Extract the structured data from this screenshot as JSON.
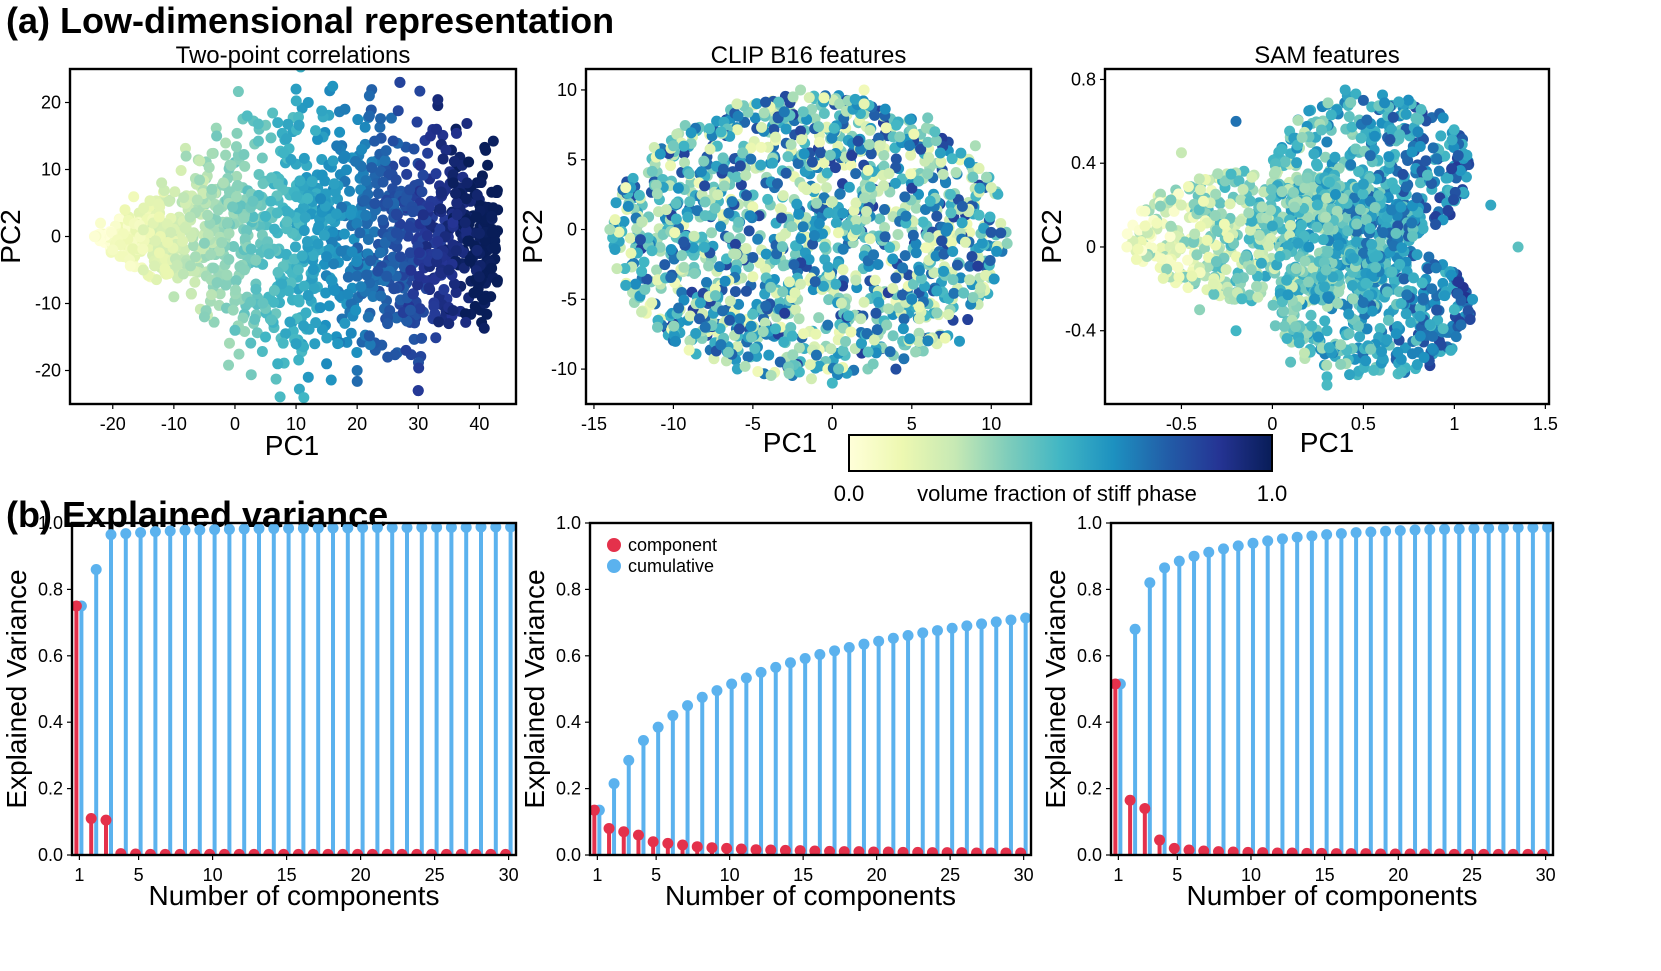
{
  "panel_a_label": "(a) Low-dimensional representation",
  "panel_b_label": "(b) Explained variance",
  "colorbar": {
    "label": "volume fraction of stiff phase",
    "min_label": "0.0",
    "max_label": "1.0",
    "colors": [
      "#ffffd9",
      "#edf8b1",
      "#c7e9b4",
      "#7fcdbb",
      "#41b6c4",
      "#1d91c0",
      "#225ea8",
      "#253494",
      "#081d58"
    ]
  },
  "colors": {
    "component": "#e4314b",
    "cumulative": "#5bb2ee"
  },
  "chart_data": [
    {
      "type": "scatter",
      "title": "Two-point correlations",
      "xlabel": "PC1",
      "ylabel": "PC2",
      "xlim": [
        -27,
        46
      ],
      "ylim": [
        -25,
        25
      ],
      "xticks": [
        -20,
        -10,
        0,
        10,
        20,
        30,
        40
      ],
      "yticks": [
        -20,
        -10,
        0,
        10,
        20
      ],
      "xtick_labels": [
        "-20",
        "-10",
        "0",
        "10",
        "20",
        "30",
        "40"
      ],
      "ytick_labels": [
        "-20",
        "-10",
        "0",
        "10",
        "20"
      ],
      "color_by": "volume fraction of stiff phase",
      "cloud": {
        "shape": "diamond",
        "x_range": [
          -23,
          43
        ],
        "y_range": [
          -23,
          23
        ],
        "color_trend": "increases with PC1"
      },
      "x": [
        -23,
        -22,
        -20,
        -18,
        -15,
        -12,
        -10,
        -8,
        -5,
        -3,
        0,
        2,
        5,
        7,
        10,
        12,
        15,
        18,
        20,
        22,
        25,
        27,
        30,
        32,
        35,
        38,
        40,
        42,
        -15,
        -5,
        5,
        15,
        25,
        35,
        7,
        10,
        27,
        30,
        33,
        28,
        22,
        12,
        18
      ],
      "y": [
        0,
        2,
        -2,
        4,
        -5,
        8,
        -9,
        12,
        -12,
        15,
        -14,
        18,
        -15,
        17,
        -16,
        20,
        -19,
        19,
        -20,
        18,
        -18,
        23,
        -23,
        15,
        -13,
        8,
        -6,
        3,
        1,
        -1,
        3,
        -3,
        5,
        -5,
        -19,
        22,
        23,
        -23,
        16,
        -17,
        21,
        -21,
        12
      ],
      "v": [
        0.02,
        0.04,
        0.07,
        0.12,
        0.18,
        0.24,
        0.27,
        0.32,
        0.36,
        0.4,
        0.44,
        0.47,
        0.5,
        0.53,
        0.57,
        0.6,
        0.64,
        0.68,
        0.7,
        0.73,
        0.78,
        0.82,
        0.86,
        0.89,
        0.93,
        0.96,
        0.98,
        0.99,
        0.18,
        0.36,
        0.5,
        0.64,
        0.78,
        0.93,
        0.52,
        0.58,
        0.83,
        0.86,
        0.9,
        0.84,
        0.72,
        0.6,
        0.66
      ]
    },
    {
      "type": "scatter",
      "title": "CLIP B16 features",
      "xlabel": "PC1",
      "ylabel": "PC2",
      "xlim": [
        -15.5,
        12.5
      ],
      "ylim": [
        -12.5,
        11.5
      ],
      "xticks": [
        -15,
        -10,
        -5,
        0,
        5,
        10
      ],
      "yticks": [
        -10,
        -5,
        0,
        5,
        10
      ],
      "xtick_labels": [
        "-15",
        "-10",
        "-5",
        "0",
        "5",
        "10"
      ],
      "ytick_labels": [
        "-10",
        "-5",
        "0",
        "5",
        "10"
      ],
      "color_by": "volume fraction of stiff phase",
      "cloud": {
        "shape": "ellipse",
        "x_range": [
          -14,
          11
        ],
        "y_range": [
          -11.5,
          10.5
        ],
        "color_trend": "mixed"
      },
      "x": [
        -14,
        -13,
        -12,
        -10,
        -8,
        -6,
        -4,
        -2,
        0,
        2,
        4,
        6,
        8,
        10,
        11,
        -13,
        -9,
        -5,
        0,
        5,
        9,
        -11,
        -7,
        -3,
        3,
        7,
        -8,
        -1,
        6,
        2
      ],
      "y": [
        0,
        3,
        -3,
        6,
        -7,
        9,
        -9,
        10,
        -11,
        9,
        -10,
        8,
        -8,
        3,
        -1,
        -4,
        4,
        -2,
        2,
        -5,
        6,
        -7,
        7,
        -6,
        6,
        -3,
        1,
        -9,
        4,
        10
      ],
      "v": [
        0.3,
        0.1,
        0.5,
        0.4,
        0.7,
        0.2,
        0.6,
        0.3,
        0.5,
        0.15,
        0.8,
        0.4,
        0.6,
        0.2,
        0.35,
        0.55,
        0.45,
        0.75,
        0.25,
        0.65,
        0.3,
        0.4,
        0.5,
        0.85,
        0.2,
        0.6,
        0.45,
        0.7,
        0.35,
        0.1
      ]
    },
    {
      "type": "scatter",
      "title": "SAM features",
      "xlabel": "PC1",
      "ylabel": "PC2",
      "xlim": [
        -0.92,
        1.52
      ],
      "ylim": [
        -0.75,
        0.85
      ],
      "xticks": [
        -0.5,
        0,
        0.5,
        1,
        1.5
      ],
      "yticks": [
        -0.4,
        0,
        0.4,
        0.8
      ],
      "xtick_labels": [
        "-0.5",
        "0",
        "0.5",
        "1",
        "1.5"
      ],
      "ytick_labels": [
        "-0.4",
        "0",
        "0.4",
        "0.8"
      ],
      "color_by": "volume fraction of stiff phase",
      "cloud": {
        "shape": "lobed",
        "x_range": [
          -0.8,
          1.4
        ],
        "y_range": [
          -0.68,
          0.78
        ],
        "color_trend": "lighter at low PC1"
      },
      "x": [
        -0.8,
        -0.7,
        -0.6,
        -0.5,
        -0.4,
        -0.3,
        -0.2,
        0.0,
        0.1,
        0.2,
        0.3,
        0.4,
        0.6,
        0.8,
        1.0,
        1.2,
        1.35,
        -0.5,
        -0.2,
        0.2,
        0.5,
        0.9,
        0.3,
        0.5,
        0.3,
        1.1
      ],
      "y": [
        0.0,
        0.1,
        -0.15,
        0.2,
        -0.3,
        0.35,
        -0.4,
        0.1,
        -0.55,
        0.65,
        -0.62,
        0.75,
        -0.5,
        0.55,
        -0.3,
        0.2,
        0.0,
        0.45,
        0.6,
        0.0,
        0.3,
        -0.1,
        -0.4,
        0.7,
        -0.66,
        -0.25
      ],
      "v": [
        0.05,
        0.1,
        0.15,
        0.2,
        0.35,
        0.3,
        0.5,
        0.55,
        0.45,
        0.6,
        0.5,
        0.55,
        0.6,
        0.65,
        0.5,
        0.55,
        0.45,
        0.25,
        0.7,
        0.62,
        0.58,
        0.68,
        0.52,
        0.74,
        0.48,
        0.6
      ]
    },
    {
      "type": "stem",
      "title": "",
      "xlabel": "Number of components",
      "ylabel": "Explained Variance",
      "xlim": [
        0.5,
        30.5
      ],
      "ylim": [
        0,
        1.0
      ],
      "xticks": [
        1,
        5,
        10,
        15,
        20,
        25,
        30
      ],
      "yticks": [
        0,
        0.2,
        0.4,
        0.6,
        0.8,
        1.0
      ],
      "xtick_labels": [
        "1",
        "5",
        "10",
        "15",
        "20",
        "25",
        "30"
      ],
      "ytick_labels": [
        "0.0",
        "0.2",
        "0.4",
        "0.6",
        "0.8",
        "1.0"
      ],
      "legend": "none",
      "x": [
        1,
        2,
        3,
        4,
        5,
        6,
        7,
        8,
        9,
        10,
        11,
        12,
        13,
        14,
        15,
        16,
        17,
        18,
        19,
        20,
        21,
        22,
        23,
        24,
        25,
        26,
        27,
        28,
        29,
        30
      ],
      "series": [
        {
          "name": "component",
          "values": [
            0.75,
            0.11,
            0.105,
            0.004,
            0.003,
            0.002,
            0.002,
            0.002,
            0.002,
            0.002,
            0.002,
            0.002,
            0.002,
            0.002,
            0.002,
            0.002,
            0.002,
            0.002,
            0.002,
            0.002,
            0.002,
            0.002,
            0.002,
            0.002,
            0.002,
            0.002,
            0.002,
            0.002,
            0.002,
            0.002
          ]
        },
        {
          "name": "cumulative",
          "values": [
            0.75,
            0.86,
            0.965,
            0.968,
            0.971,
            0.974,
            0.976,
            0.978,
            0.979,
            0.98,
            0.981,
            0.982,
            0.983,
            0.983,
            0.984,
            0.984,
            0.985,
            0.985,
            0.985,
            0.986,
            0.986,
            0.986,
            0.986,
            0.987,
            0.987,
            0.987,
            0.987,
            0.988,
            0.988,
            0.988
          ]
        }
      ]
    },
    {
      "type": "stem",
      "title": "",
      "xlabel": "Number of components",
      "ylabel": "Explained Variance",
      "xlim": [
        0.5,
        30.5
      ],
      "ylim": [
        0,
        1.0
      ],
      "xticks": [
        1,
        5,
        10,
        15,
        20,
        25,
        30
      ],
      "yticks": [
        0,
        0.2,
        0.4,
        0.6,
        0.8,
        1.0
      ],
      "xtick_labels": [
        "1",
        "5",
        "10",
        "15",
        "20",
        "25",
        "30"
      ],
      "ytick_labels": [
        "0.0",
        "0.2",
        "0.4",
        "0.6",
        "0.8",
        "1.0"
      ],
      "legend": "top-left",
      "x": [
        1,
        2,
        3,
        4,
        5,
        6,
        7,
        8,
        9,
        10,
        11,
        12,
        13,
        14,
        15,
        16,
        17,
        18,
        19,
        20,
        21,
        22,
        23,
        24,
        25,
        26,
        27,
        28,
        29,
        30
      ],
      "series": [
        {
          "name": "component",
          "values": [
            0.135,
            0.08,
            0.07,
            0.06,
            0.04,
            0.035,
            0.03,
            0.025,
            0.022,
            0.02,
            0.018,
            0.016,
            0.015,
            0.014,
            0.013,
            0.012,
            0.011,
            0.01,
            0.01,
            0.009,
            0.009,
            0.008,
            0.008,
            0.007,
            0.007,
            0.007,
            0.006,
            0.006,
            0.006,
            0.006
          ]
        },
        {
          "name": "cumulative",
          "values": [
            0.135,
            0.215,
            0.285,
            0.345,
            0.385,
            0.42,
            0.45,
            0.475,
            0.495,
            0.515,
            0.533,
            0.55,
            0.565,
            0.579,
            0.592,
            0.604,
            0.615,
            0.625,
            0.635,
            0.644,
            0.653,
            0.661,
            0.669,
            0.676,
            0.683,
            0.69,
            0.696,
            0.702,
            0.708,
            0.714
          ]
        }
      ]
    },
    {
      "type": "stem",
      "title": "",
      "xlabel": "Number of components",
      "ylabel": "Explained Variance",
      "xlim": [
        0.5,
        30.5
      ],
      "ylim": [
        0,
        1.0
      ],
      "xticks": [
        1,
        5,
        10,
        15,
        20,
        25,
        30
      ],
      "yticks": [
        0,
        0.2,
        0.4,
        0.6,
        0.8,
        1.0
      ],
      "xtick_labels": [
        "1",
        "5",
        "10",
        "15",
        "20",
        "25",
        "30"
      ],
      "ytick_labels": [
        "0.0",
        "0.2",
        "0.4",
        "0.6",
        "0.8",
        "1.0"
      ],
      "legend": "none",
      "x": [
        1,
        2,
        3,
        4,
        5,
        6,
        7,
        8,
        9,
        10,
        11,
        12,
        13,
        14,
        15,
        16,
        17,
        18,
        19,
        20,
        21,
        22,
        23,
        24,
        25,
        26,
        27,
        28,
        29,
        30
      ],
      "series": [
        {
          "name": "component",
          "values": [
            0.515,
            0.165,
            0.14,
            0.045,
            0.02,
            0.015,
            0.012,
            0.01,
            0.009,
            0.008,
            0.007,
            0.006,
            0.006,
            0.005,
            0.005,
            0.004,
            0.004,
            0.004,
            0.003,
            0.003,
            0.003,
            0.003,
            0.003,
            0.002,
            0.002,
            0.002,
            0.002,
            0.002,
            0.002,
            0.002
          ]
        },
        {
          "name": "cumulative",
          "values": [
            0.515,
            0.68,
            0.82,
            0.865,
            0.885,
            0.9,
            0.912,
            0.922,
            0.931,
            0.939,
            0.946,
            0.952,
            0.957,
            0.961,
            0.965,
            0.968,
            0.971,
            0.973,
            0.975,
            0.977,
            0.979,
            0.98,
            0.981,
            0.982,
            0.983,
            0.984,
            0.985,
            0.986,
            0.986,
            0.987
          ]
        }
      ]
    }
  ]
}
